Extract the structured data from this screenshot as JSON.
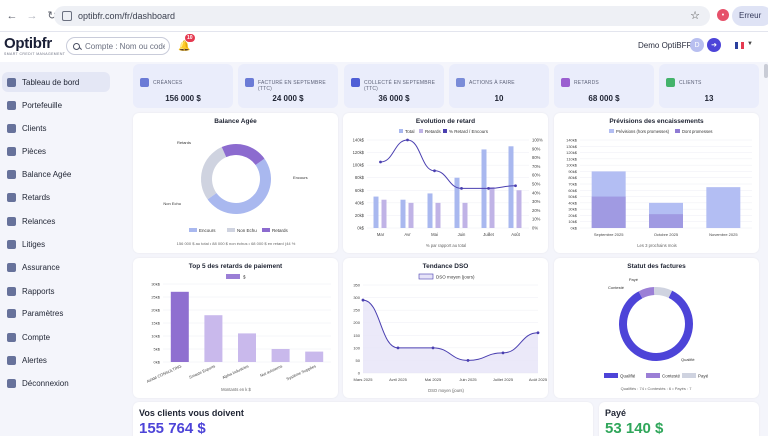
{
  "browser": {
    "url": "optibfr.com/fr/dashboard",
    "ext_badge": "•",
    "error_label": "Erreur"
  },
  "header": {
    "logo": "Optibfr",
    "logo_tagline": "SMART CREDIT MANAGEMENT",
    "search_placeholder": "Compte : Nom ou code",
    "notif_count": "10",
    "user_name": "Demo OptiBFR",
    "avatar_letter": "D"
  },
  "sidebar": {
    "items": [
      {
        "label": "Tableau de bord",
        "icon": "dashboard-icon"
      },
      {
        "label": "Portefeuille",
        "icon": "wallet-icon"
      },
      {
        "label": "Clients",
        "icon": "users-icon"
      },
      {
        "label": "Pièces",
        "icon": "document-icon"
      },
      {
        "label": "Balance Agée",
        "icon": "balance-icon"
      },
      {
        "label": "Retards",
        "icon": "clock-icon"
      },
      {
        "label": "Relances",
        "icon": "mail-icon"
      },
      {
        "label": "Litiges",
        "icon": "warning-icon"
      },
      {
        "label": "Assurance",
        "icon": "shield-icon"
      },
      {
        "label": "Rapports",
        "icon": "chart-icon"
      },
      {
        "label": "Paramètres",
        "icon": "gear-icon"
      },
      {
        "label": "Compte",
        "icon": "user-icon"
      },
      {
        "label": "Alertes",
        "icon": "bell-icon"
      },
      {
        "label": "Déconnexion",
        "icon": "logout-icon"
      }
    ]
  },
  "kpis": [
    {
      "label": "CRÉANCES",
      "value": "156 000 $",
      "color": "#6b7bd6"
    },
    {
      "label": "FACTURÉ EN SEPTEMBRE (TTC)",
      "value": "24 000 $",
      "color": "#6b7bd6"
    },
    {
      "label": "COLLECTÉ EN SEPTEMBRE (TTC)",
      "value": "36 000 $",
      "color": "#4f5fd6"
    },
    {
      "label": "ACTIONS À FAIRE",
      "value": "10",
      "color": "#7a8cd8"
    },
    {
      "label": "RETARDS",
      "value": "68 000 $",
      "color": "#9a5fd0"
    },
    {
      "label": "CLIENTS",
      "value": "13",
      "color": "#44b36b"
    }
  ],
  "colors": {
    "encours": "#a9b8ef",
    "non_echu": "#cfd3e0",
    "retards": "#8c6bcf",
    "total": "#a9b8ef",
    "line": "#4a3fb0",
    "quality": "#4d44d8"
  },
  "chart_data": [
    {
      "type": "pie",
      "title": "Balance Agée",
      "labels": [
        "Encours",
        "Non Echu",
        "Retards"
      ],
      "values": [
        156000,
        88000,
        68000
      ],
      "slice_labels": [
        "Encours",
        "Non Echu",
        "Retards"
      ],
      "legend": [
        "Encours",
        "Non Echu",
        "Retards"
      ],
      "footer": "156 000 $ au total • 88 000 $ non échus • 68 000 $ en retard (44 %"
    },
    {
      "type": "bar",
      "title": "Evolution de retard",
      "categories": [
        "Mar",
        "Avr",
        "Mai",
        "Juin",
        "Juillet",
        "Août"
      ],
      "legend": [
        "Total",
        "Retards",
        "% Retard / Encours"
      ],
      "series": [
        {
          "name": "Total",
          "values": [
            50000,
            45000,
            55000,
            80000,
            125000,
            130000
          ]
        },
        {
          "name": "Retards",
          "values": [
            45000,
            40000,
            40000,
            40000,
            65000,
            60000
          ]
        },
        {
          "name": "% Retard / Encours",
          "values": [
            75,
            100,
            65,
            45,
            45,
            48
          ]
        }
      ],
      "y_ticks": [
        "0k$",
        "20k$",
        "40k$",
        "60k$",
        "80k$",
        "100k$",
        "120k$",
        "140k$"
      ],
      "y2_ticks": [
        "0%",
        "10%",
        "20%",
        "30%",
        "40%",
        "50%",
        "60%",
        "70%",
        "80%",
        "90%",
        "100%"
      ],
      "ylim": [
        0,
        140000
      ],
      "y2lim": [
        0,
        100
      ],
      "xlabel": "% par rapport au total"
    },
    {
      "type": "bar",
      "title": "Prévisions des encaissements",
      "categories": [
        "Septembre 2025",
        "Octobre 2025",
        "Novembre 2025"
      ],
      "legend": [
        "Prévisions (hors promesses)",
        "Dont promesses"
      ],
      "series": [
        {
          "name": "Prévisions (hors promesses)",
          "values": [
            90000,
            40000,
            65000
          ]
        },
        {
          "name": "Dont promesses",
          "values": [
            50000,
            22000,
            0
          ]
        }
      ],
      "y_ticks": [
        "0k$",
        "10k$",
        "20k$",
        "30k$",
        "40k$",
        "50k$",
        "60k$",
        "70k$",
        "80k$",
        "90k$",
        "100k$",
        "110k$",
        "120k$",
        "130k$",
        "140k$"
      ],
      "ylim": [
        0,
        140000
      ],
      "xlabel": "Les 3 prochains mois"
    },
    {
      "type": "bar",
      "title": "Top 5 des retards de paiement",
      "categories": [
        "AVAM CONSULTING",
        "Smaste Exports",
        "Alpha Industries",
        "Nut avissems",
        "Système Supplies"
      ],
      "legend": [
        "$"
      ],
      "values": [
        27000,
        18000,
        11000,
        5000,
        4000
      ],
      "y_ticks": [
        "0k$",
        "5k$",
        "10k$",
        "15k$",
        "20k$",
        "25k$",
        "30k$"
      ],
      "ylim": [
        0,
        30000
      ],
      "xlabel": "Montants en k $"
    },
    {
      "type": "line",
      "title": "Tendance DSO",
      "categories": [
        "Mars 2025",
        "Avril 2025",
        "Mai 2025",
        "Juin 2025",
        "Juillet 2025",
        "Août 2025"
      ],
      "legend": [
        "DSO moyen (jours)"
      ],
      "values": [
        290,
        100,
        100,
        50,
        80,
        160
      ],
      "y_ticks": [
        "0",
        "50",
        "100",
        "150",
        "200",
        "250",
        "300",
        "350"
      ],
      "ylim": [
        0,
        350
      ],
      "xlabel": "DSO moyen (jours)"
    },
    {
      "type": "pie",
      "title": "Statut des factures",
      "labels": [
        "Qualifié",
        "Contesté",
        "Payé"
      ],
      "values": [
        74,
        6,
        7
      ],
      "slice_labels": [
        "Qualifié",
        "Contesté",
        "Payé"
      ],
      "legend": [
        "Qualifié",
        "Contesté",
        "Payé"
      ],
      "footer": "Qualifiés : 74 • Contestés : 6 • Payés : 7"
    }
  ],
  "bottom": {
    "owed_title": "Vos clients vous doivent",
    "owed_value": "155 764 $",
    "paid_title": "Payé",
    "paid_value": "53 140 $"
  }
}
